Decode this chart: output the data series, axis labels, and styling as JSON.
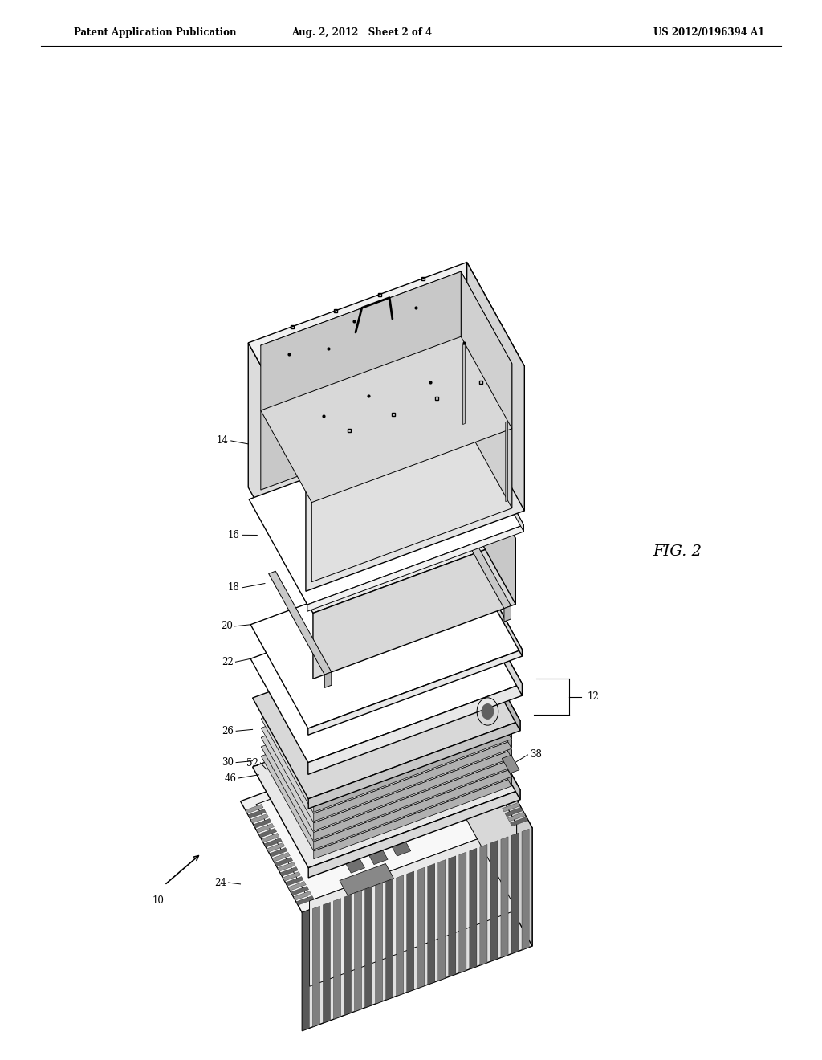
{
  "background_color": "#ffffff",
  "line_color": "#000000",
  "header_left": "Patent Application Publication",
  "header_center": "Aug. 2, 2012   Sheet 2 of 4",
  "header_right": "US 2012/0196394 A1",
  "fig_label": "FIG. 2",
  "proj_ox": 0.47,
  "proj_oy": 0.13,
  "proj_sx": 0.3,
  "proj_sy": 0.16,
  "proj_sz": 0.6
}
